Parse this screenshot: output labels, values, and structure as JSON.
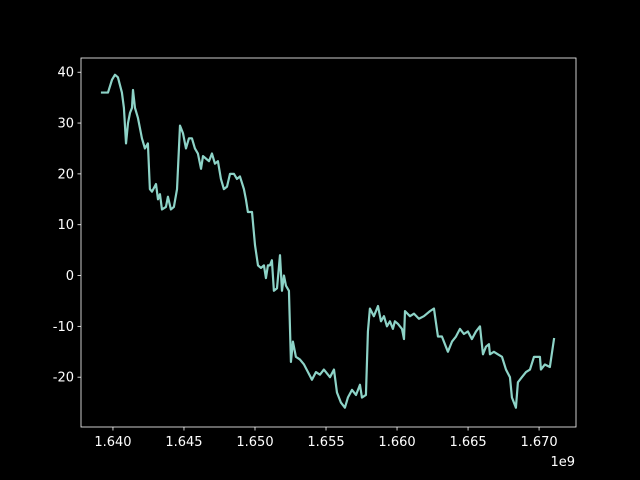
{
  "chart_data": {
    "type": "line",
    "color": "#8dd3c7",
    "x": [
      1639230000,
      1639650000,
      1639930000,
      1640140000,
      1640350000,
      1640630000,
      1640770000,
      1640920000,
      1641060000,
      1641200000,
      1641340000,
      1641410000,
      1641550000,
      1641760000,
      1642040000,
      1642250000,
      1642460000,
      1642600000,
      1642750000,
      1643030000,
      1643170000,
      1643310000,
      1643450000,
      1643730000,
      1643870000,
      1644080000,
      1644290000,
      1644510000,
      1644720000,
      1644930000,
      1645140000,
      1645350000,
      1645560000,
      1645770000,
      1645980000,
      1646200000,
      1646340000,
      1646550000,
      1646760000,
      1646970000,
      1647180000,
      1647390000,
      1647600000,
      1647810000,
      1648030000,
      1648240000,
      1648520000,
      1648730000,
      1648940000,
      1649220000,
      1649360000,
      1649500000,
      1649790000,
      1650000000,
      1650210000,
      1650420000,
      1650630000,
      1650770000,
      1650910000,
      1651050000,
      1651190000,
      1651330000,
      1651550000,
      1651760000,
      1651900000,
      1652040000,
      1652180000,
      1652390000,
      1652530000,
      1652670000,
      1652880000,
      1653160000,
      1653450000,
      1653730000,
      1654010000,
      1654290000,
      1654570000,
      1654850000,
      1655280000,
      1655560000,
      1655770000,
      1656050000,
      1656330000,
      1656540000,
      1656830000,
      1657110000,
      1657390000,
      1657530000,
      1657810000,
      1657950000,
      1658090000,
      1658370000,
      1658660000,
      1658870000,
      1659080000,
      1659290000,
      1659500000,
      1659710000,
      1659850000,
      1660060000,
      1660350000,
      1660490000,
      1660560000,
      1660910000,
      1661190000,
      1661540000,
      1661890000,
      1662320000,
      1662600000,
      1662880000,
      1663160000,
      1663440000,
      1663580000,
      1663870000,
      1664150000,
      1664430000,
      1664710000,
      1664990000,
      1665270000,
      1665560000,
      1665840000,
      1666050000,
      1666260000,
      1666470000,
      1666540000,
      1666820000,
      1667100000,
      1667390000,
      1667670000,
      1667950000,
      1668090000,
      1668370000,
      1668510000,
      1668790000,
      1669080000,
      1669360000,
      1669640000,
      1670060000,
      1670130000,
      1670410000,
      1670760000,
      1671050000
    ],
    "values": [
      36,
      36,
      38.5,
      39.5,
      39,
      36,
      33,
      26,
      30,
      32,
      33,
      36.5,
      33,
      31,
      27,
      25,
      26,
      17,
      16.5,
      18,
      15,
      16,
      13,
      13.5,
      15.5,
      13,
      13.5,
      17,
      29.5,
      28,
      25,
      27,
      27,
      25,
      24,
      21,
      23.5,
      23,
      22.5,
      24,
      22,
      22.5,
      19,
      17,
      17.5,
      20,
      20,
      19,
      19.5,
      17,
      15,
      12.5,
      12.5,
      6,
      2,
      1.5,
      2,
      -0.5,
      2,
      2,
      3,
      -3,
      -2.5,
      4,
      -3,
      0,
      -2,
      -3,
      -17,
      -13,
      -16,
      -16.5,
      -17.5,
      -19,
      -20.5,
      -19,
      -19.5,
      -18.5,
      -20,
      -18.5,
      -23,
      -25,
      -26,
      -24,
      -22.5,
      -23.5,
      -21.5,
      -24,
      -23.5,
      -11,
      -6.5,
      -8,
      -6,
      -9,
      -8,
      -10,
      -9,
      -10.5,
      -9,
      -9.5,
      -10.5,
      -12.5,
      -7,
      -8,
      -7.5,
      -8.5,
      -8,
      -7,
      -6.5,
      -12,
      -12,
      -14,
      -15,
      -13,
      -12,
      -10.5,
      -11.5,
      -11,
      -12.5,
      -11,
      -10,
      -15.5,
      -14,
      -13.5,
      -15.5,
      -15,
      -15.5,
      -16,
      -18.5,
      -20,
      -24,
      -26,
      -21,
      -20,
      -19,
      -18.5,
      -16,
      -16,
      -18.5,
      -17.5,
      -18,
      -12.5
    ],
    "xlim": [
      1637750000,
      1672600000
    ],
    "xticks": [
      {
        "value": 1640000000,
        "label": "1.640"
      },
      {
        "value": 1645000000,
        "label": "1.645"
      },
      {
        "value": 1650000000,
        "label": "1.650"
      },
      {
        "value": 1655000000,
        "label": "1.655"
      },
      {
        "value": 1660000000,
        "label": "1.660"
      },
      {
        "value": 1665000000,
        "label": "1.665"
      },
      {
        "value": 1670000000,
        "label": "1.670"
      }
    ],
    "x_offset_label": "1e9",
    "ylim": [
      -29.8,
      42.8
    ],
    "yticks": [
      -20,
      -10,
      0,
      10,
      20,
      30,
      40
    ]
  }
}
